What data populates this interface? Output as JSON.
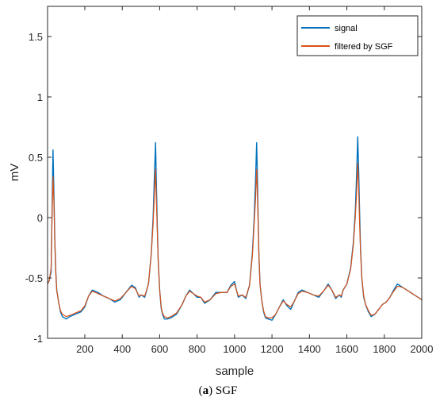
{
  "caption": {
    "prefix": "(",
    "label": "a",
    "suffix": ") SGF"
  },
  "chart_data": {
    "type": "line",
    "xlabel": "sample",
    "ylabel": "mV",
    "xlim": [
      1,
      2000
    ],
    "ylim": [
      -1,
      1.75
    ],
    "xticks": [
      200,
      400,
      600,
      800,
      1000,
      1200,
      1400,
      1600,
      1800,
      2000
    ],
    "yticks": [
      -1,
      -0.5,
      0,
      0.5,
      1,
      1.5
    ],
    "ytick_labels": [
      "-1",
      "-0.5",
      "0",
      "0.5",
      "1",
      "1.5"
    ],
    "grid": false,
    "legend_position": "top-right",
    "series": [
      {
        "name": "signal",
        "color": "#0072BD",
        "x": [
          1,
          10,
          20,
          25,
          30,
          35,
          40,
          45,
          50,
          60,
          70,
          80,
          100,
          120,
          150,
          180,
          200,
          220,
          240,
          270,
          300,
          330,
          360,
          390,
          420,
          450,
          470,
          490,
          500,
          520,
          540,
          555,
          565,
          572,
          578,
          582,
          587,
          592,
          600,
          608,
          615,
          625,
          640,
          660,
          690,
          720,
          740,
          760,
          780,
          800,
          820,
          840,
          870,
          900,
          930,
          960,
          980,
          1000,
          1010,
          1020,
          1040,
          1060,
          1080,
          1095,
          1105,
          1112,
          1118,
          1122,
          1126,
          1130,
          1136,
          1145,
          1155,
          1165,
          1180,
          1200,
          1220,
          1240,
          1260,
          1280,
          1300,
          1320,
          1340,
          1360,
          1390,
          1420,
          1450,
          1480,
          1500,
          1520,
          1540,
          1560,
          1570,
          1580,
          1600,
          1620,
          1635,
          1645,
          1652,
          1658,
          1663,
          1668,
          1673,
          1680,
          1690,
          1700,
          1715,
          1730,
          1750,
          1770,
          1790,
          1810,
          1830,
          1850,
          1870,
          1880,
          1900,
          1920,
          1940,
          1960,
          1980,
          2000
        ],
        "y": [
          -0.55,
          -0.52,
          -0.45,
          0.05,
          0.56,
          0.2,
          -0.2,
          -0.45,
          -0.6,
          -0.7,
          -0.78,
          -0.82,
          -0.84,
          -0.82,
          -0.8,
          -0.78,
          -0.74,
          -0.65,
          -0.6,
          -0.62,
          -0.65,
          -0.67,
          -0.7,
          -0.68,
          -0.62,
          -0.56,
          -0.58,
          -0.66,
          -0.64,
          -0.66,
          -0.55,
          -0.3,
          0.0,
          0.35,
          0.62,
          0.3,
          -0.05,
          -0.35,
          -0.6,
          -0.75,
          -0.8,
          -0.84,
          -0.84,
          -0.83,
          -0.8,
          -0.72,
          -0.65,
          -0.6,
          -0.63,
          -0.66,
          -0.66,
          -0.71,
          -0.68,
          -0.62,
          -0.62,
          -0.62,
          -0.56,
          -0.53,
          -0.6,
          -0.66,
          -0.64,
          -0.67,
          -0.56,
          -0.3,
          0.0,
          0.3,
          0.62,
          0.35,
          0.0,
          -0.3,
          -0.55,
          -0.68,
          -0.78,
          -0.83,
          -0.84,
          -0.85,
          -0.8,
          -0.74,
          -0.68,
          -0.73,
          -0.76,
          -0.69,
          -0.62,
          -0.6,
          -0.62,
          -0.64,
          -0.66,
          -0.6,
          -0.55,
          -0.6,
          -0.67,
          -0.64,
          -0.66,
          -0.6,
          -0.55,
          -0.42,
          -0.2,
          0.05,
          0.35,
          0.67,
          0.4,
          0.05,
          -0.25,
          -0.5,
          -0.66,
          -0.72,
          -0.78,
          -0.82,
          -0.8,
          -0.76,
          -0.72,
          -0.7,
          -0.66,
          -0.6,
          -0.55,
          -0.56,
          -0.58,
          -0.6,
          -0.62,
          -0.64,
          -0.66,
          -0.68
        ]
      },
      {
        "name": "filtered by SGF",
        "color": "#D95319",
        "x": [
          1,
          10,
          20,
          25,
          30,
          35,
          40,
          45,
          50,
          60,
          70,
          80,
          100,
          120,
          150,
          180,
          200,
          220,
          240,
          270,
          300,
          330,
          360,
          390,
          420,
          450,
          470,
          490,
          500,
          520,
          540,
          555,
          565,
          572,
          578,
          582,
          587,
          592,
          600,
          608,
          615,
          625,
          640,
          660,
          690,
          720,
          740,
          760,
          780,
          800,
          820,
          840,
          870,
          900,
          930,
          960,
          980,
          1000,
          1010,
          1020,
          1040,
          1060,
          1080,
          1095,
          1105,
          1112,
          1118,
          1122,
          1126,
          1130,
          1136,
          1145,
          1155,
          1165,
          1180,
          1200,
          1220,
          1240,
          1260,
          1280,
          1300,
          1320,
          1340,
          1360,
          1390,
          1420,
          1450,
          1480,
          1500,
          1520,
          1540,
          1560,
          1570,
          1580,
          1600,
          1620,
          1635,
          1645,
          1652,
          1658,
          1663,
          1668,
          1673,
          1680,
          1690,
          1700,
          1715,
          1730,
          1750,
          1770,
          1790,
          1810,
          1830,
          1850,
          1870,
          1880,
          1900,
          1920,
          1940,
          1960,
          1980,
          2000
        ],
        "y": [
          -0.55,
          -0.52,
          -0.42,
          0.0,
          0.34,
          0.12,
          -0.22,
          -0.46,
          -0.6,
          -0.7,
          -0.77,
          -0.8,
          -0.82,
          -0.81,
          -0.79,
          -0.77,
          -0.73,
          -0.65,
          -0.61,
          -0.63,
          -0.65,
          -0.67,
          -0.69,
          -0.67,
          -0.62,
          -0.57,
          -0.59,
          -0.65,
          -0.64,
          -0.65,
          -0.55,
          -0.3,
          -0.05,
          0.2,
          0.4,
          0.15,
          -0.1,
          -0.36,
          -0.6,
          -0.74,
          -0.79,
          -0.82,
          -0.83,
          -0.82,
          -0.79,
          -0.72,
          -0.65,
          -0.61,
          -0.63,
          -0.65,
          -0.66,
          -0.7,
          -0.68,
          -0.63,
          -0.62,
          -0.62,
          -0.57,
          -0.55,
          -0.6,
          -0.65,
          -0.64,
          -0.66,
          -0.56,
          -0.32,
          -0.05,
          0.15,
          0.4,
          0.2,
          -0.05,
          -0.3,
          -0.55,
          -0.68,
          -0.77,
          -0.82,
          -0.83,
          -0.83,
          -0.8,
          -0.74,
          -0.69,
          -0.72,
          -0.74,
          -0.69,
          -0.63,
          -0.61,
          -0.62,
          -0.64,
          -0.65,
          -0.6,
          -0.56,
          -0.6,
          -0.66,
          -0.64,
          -0.65,
          -0.6,
          -0.55,
          -0.43,
          -0.22,
          0.0,
          0.2,
          0.45,
          0.25,
          -0.05,
          -0.28,
          -0.5,
          -0.65,
          -0.72,
          -0.77,
          -0.81,
          -0.8,
          -0.76,
          -0.72,
          -0.7,
          -0.66,
          -0.61,
          -0.57,
          -0.57,
          -0.58,
          -0.6,
          -0.62,
          -0.64,
          -0.66,
          -0.68
        ]
      }
    ]
  }
}
